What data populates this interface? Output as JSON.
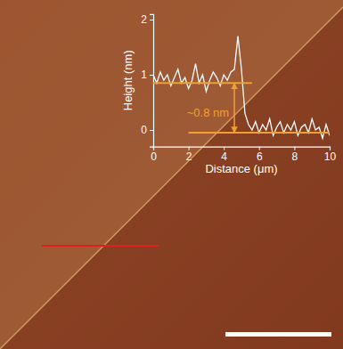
{
  "chart_data": {
    "type": "line",
    "x_label": "Distance (μm)",
    "y_label": "Height (nm)",
    "xlim": [
      0,
      10
    ],
    "ylim": [
      -0.3,
      2.1
    ],
    "xticks": [
      0,
      2,
      4,
      6,
      8,
      10
    ],
    "yticks": [
      0,
      1,
      2
    ],
    "color": "#ffffff",
    "x": [
      0,
      0.2,
      0.4,
      0.6,
      0.8,
      1.0,
      1.2,
      1.4,
      1.6,
      1.8,
      2.0,
      2.2,
      2.4,
      2.6,
      2.8,
      3.0,
      3.2,
      3.4,
      3.6,
      3.8,
      4.0,
      4.2,
      4.4,
      4.6,
      4.8,
      5.0,
      5.2,
      5.4,
      5.6,
      5.8,
      6.0,
      6.2,
      6.4,
      6.6,
      6.8,
      7.0,
      7.2,
      7.4,
      7.6,
      7.8,
      8.0,
      8.2,
      8.4,
      8.6,
      8.8,
      9.0,
      9.2,
      9.4,
      9.6,
      9.8,
      10.0
    ],
    "values": [
      1.0,
      0.85,
      1.05,
      0.9,
      1.0,
      0.8,
      0.95,
      1.1,
      0.85,
      0.95,
      0.75,
      0.9,
      1.2,
      0.85,
      1.0,
      0.7,
      0.9,
      1.05,
      0.95,
      0.8,
      1.0,
      0.9,
      1.05,
      1.1,
      1.7,
      1.1,
      0.3,
      0.1,
      0.0,
      0.15,
      -0.05,
      0.1,
      0.0,
      0.2,
      -0.1,
      0.05,
      0.15,
      -0.05,
      0.1,
      0.0,
      0.15,
      -0.1,
      0.05,
      0.1,
      -0.05,
      0.2,
      0.0,
      0.05,
      -0.15,
      0.1,
      -0.1
    ],
    "reference_lines": [
      {
        "x": [
          0,
          5.6
        ],
        "y": 0.85,
        "color": "#f0a030"
      },
      {
        "x": [
          2,
          10
        ],
        "y": -0.05,
        "color": "#f0a030"
      }
    ],
    "annotations": [
      {
        "text": "~0.8 nm",
        "x": 4.6,
        "y": [
          0.85,
          -0.05
        ],
        "color": "#f0a030"
      }
    ]
  }
}
